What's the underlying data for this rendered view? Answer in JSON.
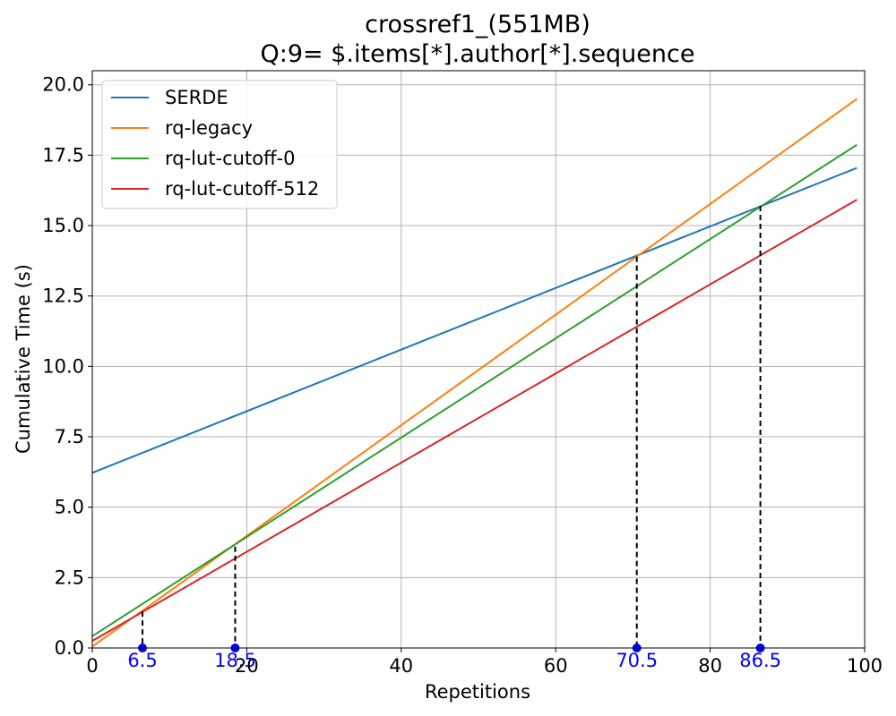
{
  "chart_data": {
    "type": "line",
    "title": "crossref1_(551MB)",
    "subtitle": "Q:9= $.items[*].author[*].sequence",
    "xlabel": "Repetitions",
    "ylabel": "Cumulative Time (s)",
    "xlim": [
      0,
      100
    ],
    "ylim": [
      0,
      20.5
    ],
    "xticks": [
      0,
      20,
      40,
      60,
      80,
      100
    ],
    "yticks": [
      0.0,
      2.5,
      5.0,
      7.5,
      10.0,
      12.5,
      15.0,
      17.5,
      20.0
    ],
    "x_tick_labels": [
      "0",
      "20",
      "40",
      "60",
      "80",
      "100"
    ],
    "y_tick_labels": [
      "0.0",
      "2.5",
      "5.0",
      "7.5",
      "10.0",
      "12.5",
      "15.0",
      "17.5",
      "20.0"
    ],
    "grid": true,
    "legend_position": "upper-left",
    "series": [
      {
        "name": "SERDE",
        "color": "#1f77b4",
        "x": [
          0,
          99
        ],
        "y": [
          6.22,
          17.05
        ]
      },
      {
        "name": "rq-legacy",
        "color": "#ff7f0e",
        "x": [
          0,
          99
        ],
        "y": [
          0.05,
          19.5
        ]
      },
      {
        "name": "rq-lut-cutoff-0",
        "color": "#2ca02c",
        "x": [
          0,
          99
        ],
        "y": [
          0.42,
          17.87
        ]
      },
      {
        "name": "rq-lut-cutoff-512",
        "color": "#d62728",
        "x": [
          0,
          99
        ],
        "y": [
          0.25,
          15.92
        ]
      }
    ],
    "crossovers": [
      {
        "x": 6.5,
        "y": 1.3,
        "label": "6.5"
      },
      {
        "x": 18.5,
        "y": 3.6,
        "label": "18.5"
      },
      {
        "x": 70.5,
        "y": 13.9,
        "label": "70.5"
      },
      {
        "x": 86.5,
        "y": 15.7,
        "label": "86.5"
      }
    ],
    "crossover_color": "#0000ff"
  }
}
